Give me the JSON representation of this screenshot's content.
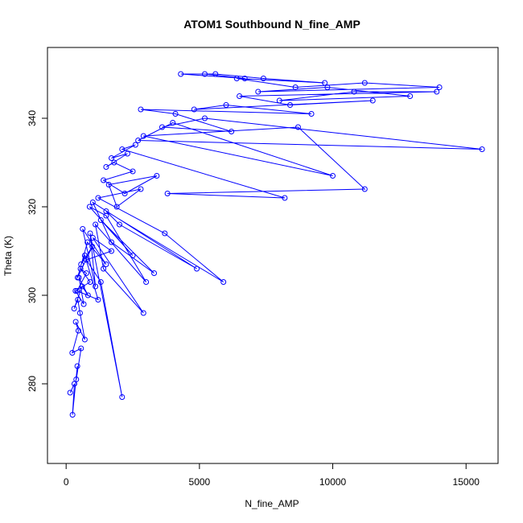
{
  "chart_data": {
    "type": "line",
    "title": "ATOM1 Southbound N_fine_AMP",
    "xlabel": "N_fine_AMP",
    "ylabel": "Theta (K)",
    "xlim": [
      -700,
      16200
    ],
    "ylim": [
      262,
      356
    ],
    "x_ticks": [
      0,
      5000,
      10000,
      15000
    ],
    "y_ticks": [
      280,
      300,
      320,
      340
    ],
    "grid": false,
    "legend": "none",
    "marker": "open-circle",
    "color": "#0000ff",
    "series": [
      {
        "x": [
          150,
          310,
          240,
          420,
          380,
          560,
          230,
          460,
          360,
          700,
          520,
          440,
          300,
          600,
          820,
          480,
          660,
          350,
          900,
          540,
          760,
          410,
          1200,
          700,
          560,
          980,
          430,
          800,
          1500,
          620,
          1100,
          900,
          2100,
          1300,
          760,
          1700,
          1000,
          2900,
          1400,
          1100,
          3000,
          1500,
          880,
          2500,
          1300,
          3300,
          1700,
          1000,
          4900,
          2000,
          1500,
          5900,
          3700,
          1200,
          2800,
          1900,
          1600,
          3400,
          2200,
          1400,
          2500,
          1800,
          1500,
          2300,
          1700,
          2600,
          2100,
          8200,
          3800,
          11200,
          8700,
          2900,
          10000,
          4000,
          2700,
          15600,
          5200,
          3600,
          6200,
          4100,
          2800,
          9200,
          6000,
          4800,
          11500,
          8400,
          6500,
          13900,
          10800,
          8000,
          12900,
          9800,
          7200,
          14000,
          11200,
          8600,
          6400,
          9700,
          7400,
          5600,
          4300,
          6700,
          5200
        ],
        "y": [
          278,
          280,
          273,
          284,
          281,
          288,
          287,
          292,
          294,
          290,
          296,
          299,
          297,
          302,
          300,
          304,
          298,
          301,
          303,
          306,
          305,
          301,
          299,
          309,
          307,
          311,
          304,
          312,
          307,
          315,
          302,
          314,
          277,
          303,
          308,
          310,
          313,
          296,
          306,
          316,
          303,
          318,
          320,
          309,
          317,
          305,
          312,
          321,
          306,
          316,
          319,
          303,
          314,
          322,
          324,
          320,
          325,
          327,
          323,
          326,
          328,
          330,
          329,
          332,
          331,
          334,
          333,
          322,
          323,
          324,
          338,
          336,
          327,
          339,
          335,
          333,
          340,
          338,
          337,
          341,
          342,
          341,
          343,
          342,
          344,
          343,
          345,
          346,
          346,
          344,
          345,
          347,
          346,
          347,
          348,
          347,
          349,
          348,
          349,
          350,
          350,
          349,
          350
        ]
      }
    ]
  }
}
